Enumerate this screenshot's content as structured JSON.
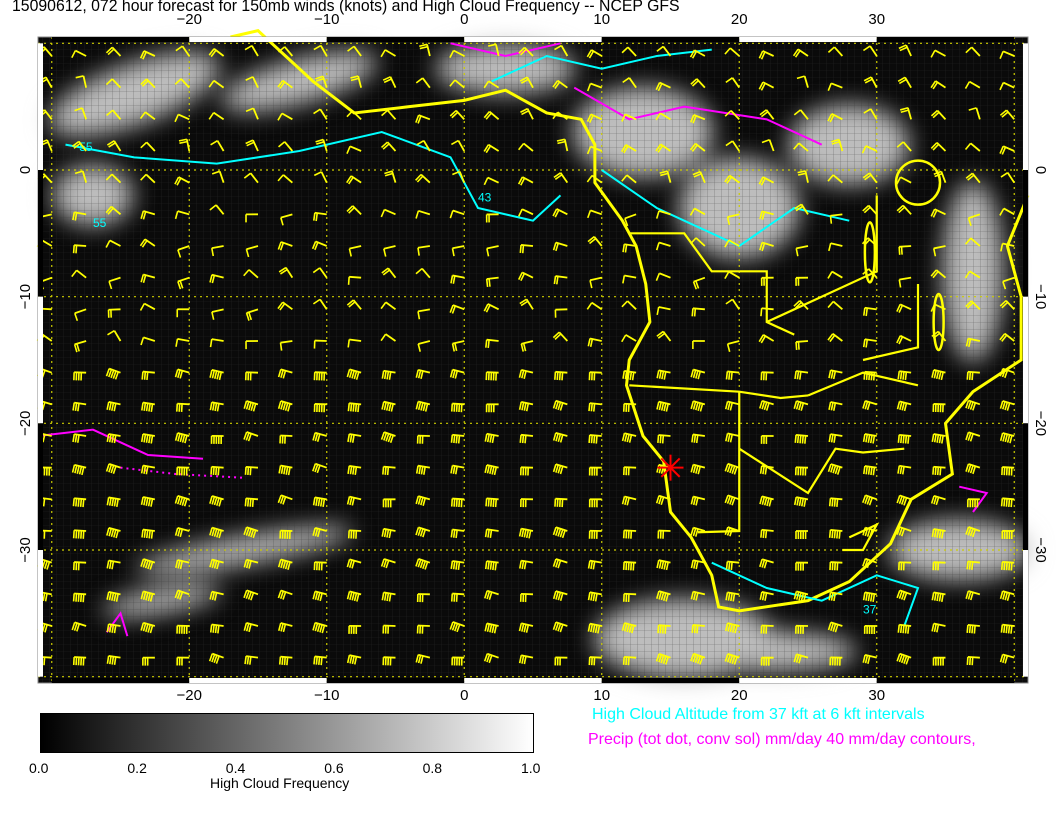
{
  "title": "15090612, 072 hour forecast for 150mb winds (knots) and High Cloud Frequency -- NCEP GFS",
  "map": {
    "lon_range": [
      -31,
      41
    ],
    "lat_range": [
      -40.5,
      10.5
    ],
    "lon_ticks": [
      "−20",
      "−10",
      "0",
      "10",
      "20",
      "30"
    ],
    "lon_tick_values": [
      -20,
      -10,
      0,
      10,
      20,
      30
    ],
    "lat_ticks": [
      "0",
      "−10",
      "−20",
      "−30"
    ],
    "lat_tick_values": [
      0,
      -10,
      -20,
      -30
    ],
    "grid_interval_deg": 10,
    "coastline_color": "#ffff00",
    "wind_barb_color": "#ffff00",
    "cloud_altitude_contour_color": "#00ffff",
    "precip_contour_color": "#ff00ff",
    "marker": {
      "type": "red-star",
      "lon": 15,
      "lat": -23.5,
      "color": "#ff0000"
    },
    "contour_labels": [
      "55",
      "43",
      "55",
      "37"
    ]
  },
  "legend": {
    "cloud_altitude": "High Cloud Altitude from 37 kft at 6 kft intervals",
    "precip": "Precip (tot dot, conv sol) mm/day 40 mm/day contours,"
  },
  "colorbar": {
    "title": "High Cloud Frequency",
    "ticks": [
      "0.0",
      "0.2",
      "0.4",
      "0.6",
      "0.8",
      "1.0"
    ],
    "range": [
      0,
      1
    ],
    "colors": [
      "#000000",
      "#ffffff"
    ]
  }
}
